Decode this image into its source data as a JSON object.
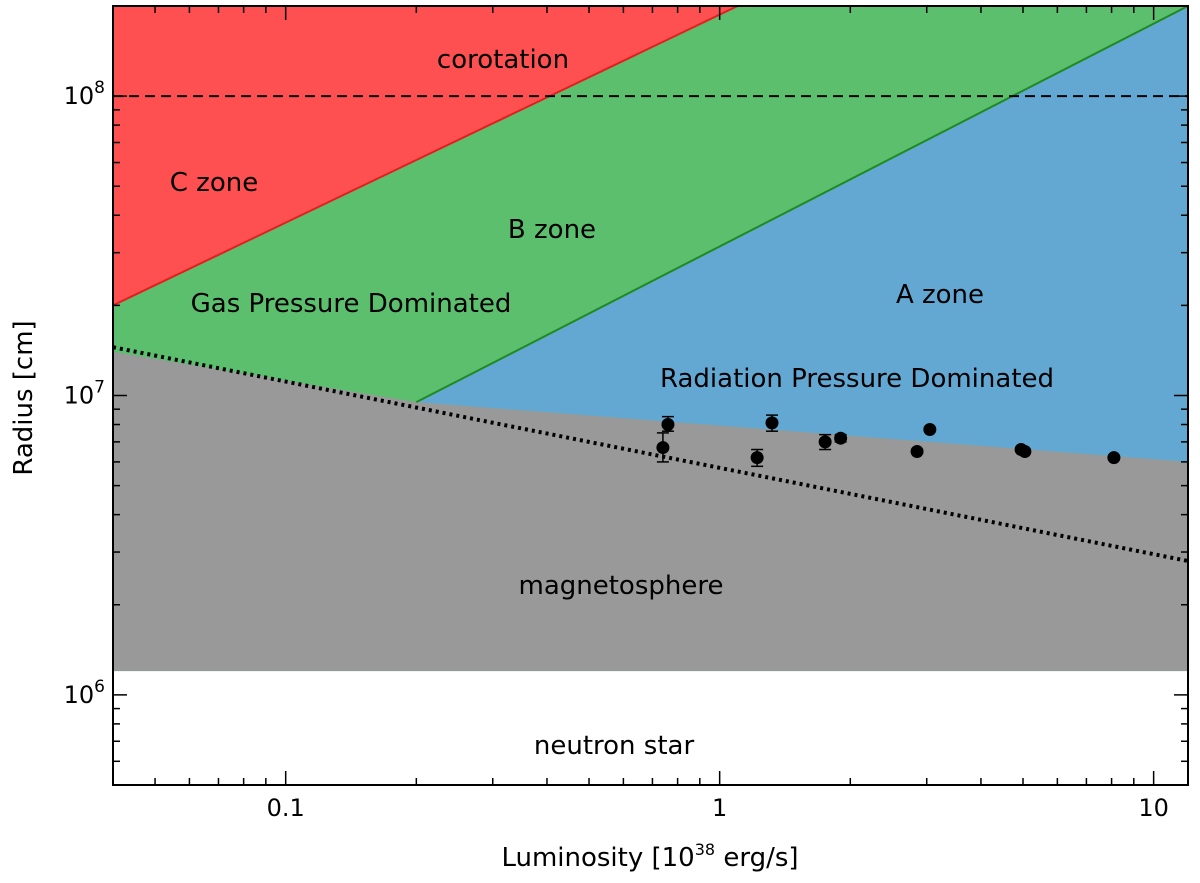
{
  "chart_data": {
    "type": "scatter",
    "xlabel": "Luminosity [10",
    "xlabel_sup": "38",
    "xlabel_unit": " erg/s]",
    "ylabel": "Radius [cm]",
    "xscale": "log",
    "yscale": "log",
    "xlim": [
      0.04,
      12
    ],
    "ylim": [
      500000,
      200000000
    ],
    "grid": false,
    "x_ticks": [
      {
        "value": 0.1,
        "label": "0.1"
      },
      {
        "value": 1,
        "label": "1"
      },
      {
        "value": 10,
        "label": "10"
      }
    ],
    "y_ticks": [
      {
        "value": 1000000,
        "base": "10",
        "exp": "6"
      },
      {
        "value": 10000000,
        "base": "10",
        "exp": "7"
      },
      {
        "value": 100000000,
        "base": "10",
        "exp": "8"
      }
    ],
    "colors": {
      "corotation": "#fe5050",
      "gas": "#5bbf6e",
      "radiation": "#63a8d3",
      "magnetosphere": "#999999",
      "red_line": "#e81c1c",
      "green_line": "#1f8a1f",
      "points": "#000000"
    },
    "boundaries": {
      "corotation_radius": 100000000,
      "neutron_star_radius": 1200000,
      "red_line": [
        [
          0.04,
          20000000
        ],
        [
          1.1,
          200000000
        ]
      ],
      "green_line": [
        [
          0.2,
          9500000
        ],
        [
          12,
          200000000
        ]
      ],
      "magnetosphere_top": [
        [
          0.04,
          14000000
        ],
        [
          0.2,
          9500000
        ],
        [
          12,
          6000000
        ]
      ],
      "dotted_line": [
        [
          0.04,
          14500000
        ],
        [
          12,
          2800000
        ]
      ]
    },
    "regions": [
      {
        "name": "corotation",
        "label": "corotation"
      },
      {
        "name": "c-zone",
        "label": "C zone"
      },
      {
        "name": "b-zone",
        "label": "B zone"
      },
      {
        "name": "gas-pressure",
        "label": "Gas Pressure Dominated"
      },
      {
        "name": "a-zone",
        "label": "A zone"
      },
      {
        "name": "radiation-pressure",
        "label": "Radiation Pressure Dominated"
      },
      {
        "name": "magnetosphere",
        "label": "magnetosphere"
      },
      {
        "name": "neutron-star",
        "label": "neutron star"
      }
    ],
    "points": [
      {
        "x": 0.74,
        "y": 6700000,
        "yerr": [
          6000000,
          7500000
        ]
      },
      {
        "x": 0.76,
        "y": 8000000,
        "yerr": [
          7600000,
          8500000
        ]
      },
      {
        "x": 1.22,
        "y": 6200000,
        "yerr": [
          5800000,
          6600000
        ]
      },
      {
        "x": 1.32,
        "y": 8100000,
        "yerr": [
          7600000,
          8600000
        ]
      },
      {
        "x": 1.75,
        "y": 7000000,
        "yerr": [
          6600000,
          7400000
        ]
      },
      {
        "x": 1.9,
        "y": 7200000,
        "yerr": [
          7000000,
          7400000
        ]
      },
      {
        "x": 2.85,
        "y": 6500000,
        "yerr": [
          6400000,
          6600000
        ]
      },
      {
        "x": 3.05,
        "y": 7700000,
        "yerr": [
          7600000,
          7800000
        ]
      },
      {
        "x": 4.95,
        "y": 6600000,
        "yerr": [
          6500000,
          6700000
        ]
      },
      {
        "x": 5.05,
        "y": 6500000,
        "yerr": [
          6400000,
          6600000
        ]
      },
      {
        "x": 8.1,
        "y": 6200000,
        "yerr": [
          6100000,
          6300000
        ]
      }
    ]
  }
}
